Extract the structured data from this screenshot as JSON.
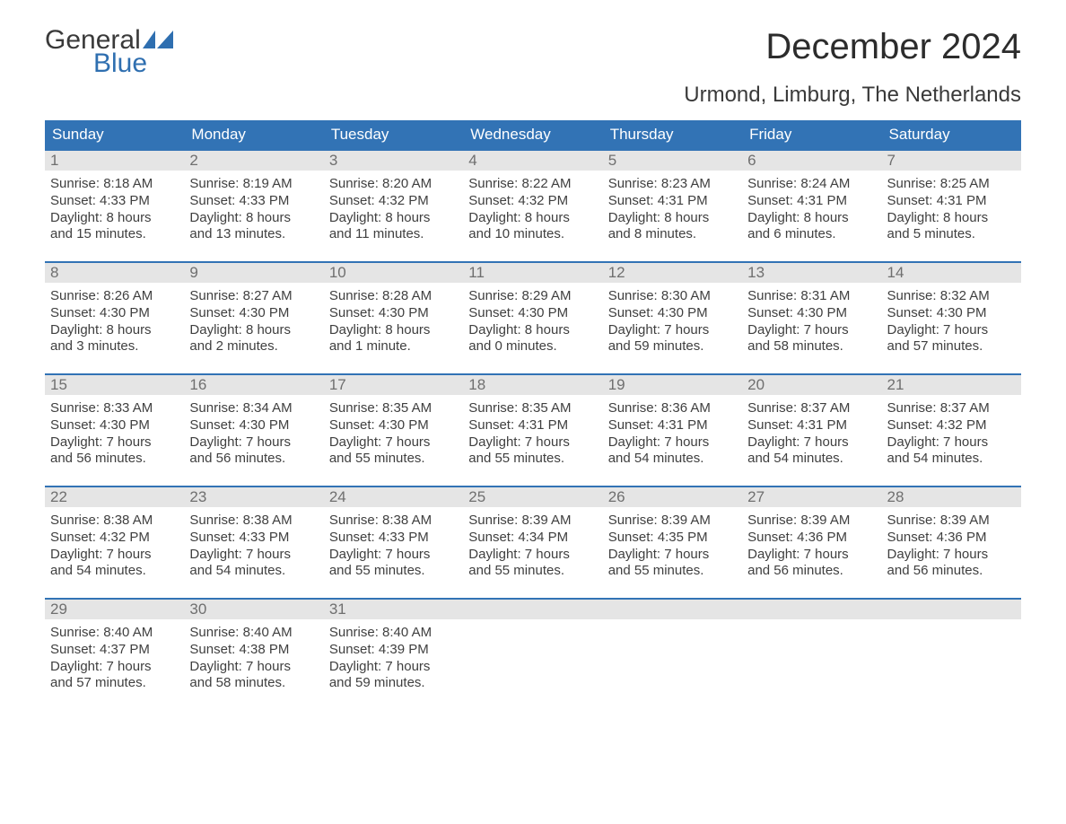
{
  "logo": {
    "general": "General",
    "blue": "Blue"
  },
  "title": "December 2024",
  "location": "Urmond, Limburg, The Netherlands",
  "colors": {
    "header_bg": "#3273b5",
    "header_text": "#ffffff",
    "week_border": "#3273b5",
    "daynum_bg": "#e5e5e5",
    "daynum_text": "#6f6f6f",
    "body_text": "#3f3f3f",
    "logo_blue": "#2f6fb0",
    "background": "#ffffff"
  },
  "dow": [
    "Sunday",
    "Monday",
    "Tuesday",
    "Wednesday",
    "Thursday",
    "Friday",
    "Saturday"
  ],
  "weeks": [
    [
      {
        "n": "1",
        "sr": "8:18 AM",
        "ss": "4:33 PM",
        "dl1": "Daylight: 8 hours",
        "dl2": "and 15 minutes."
      },
      {
        "n": "2",
        "sr": "8:19 AM",
        "ss": "4:33 PM",
        "dl1": "Daylight: 8 hours",
        "dl2": "and 13 minutes."
      },
      {
        "n": "3",
        "sr": "8:20 AM",
        "ss": "4:32 PM",
        "dl1": "Daylight: 8 hours",
        "dl2": "and 11 minutes."
      },
      {
        "n": "4",
        "sr": "8:22 AM",
        "ss": "4:32 PM",
        "dl1": "Daylight: 8 hours",
        "dl2": "and 10 minutes."
      },
      {
        "n": "5",
        "sr": "8:23 AM",
        "ss": "4:31 PM",
        "dl1": "Daylight: 8 hours",
        "dl2": "and 8 minutes."
      },
      {
        "n": "6",
        "sr": "8:24 AM",
        "ss": "4:31 PM",
        "dl1": "Daylight: 8 hours",
        "dl2": "and 6 minutes."
      },
      {
        "n": "7",
        "sr": "8:25 AM",
        "ss": "4:31 PM",
        "dl1": "Daylight: 8 hours",
        "dl2": "and 5 minutes."
      }
    ],
    [
      {
        "n": "8",
        "sr": "8:26 AM",
        "ss": "4:30 PM",
        "dl1": "Daylight: 8 hours",
        "dl2": "and 3 minutes."
      },
      {
        "n": "9",
        "sr": "8:27 AM",
        "ss": "4:30 PM",
        "dl1": "Daylight: 8 hours",
        "dl2": "and 2 minutes."
      },
      {
        "n": "10",
        "sr": "8:28 AM",
        "ss": "4:30 PM",
        "dl1": "Daylight: 8 hours",
        "dl2": "and 1 minute."
      },
      {
        "n": "11",
        "sr": "8:29 AM",
        "ss": "4:30 PM",
        "dl1": "Daylight: 8 hours",
        "dl2": "and 0 minutes."
      },
      {
        "n": "12",
        "sr": "8:30 AM",
        "ss": "4:30 PM",
        "dl1": "Daylight: 7 hours",
        "dl2": "and 59 minutes."
      },
      {
        "n": "13",
        "sr": "8:31 AM",
        "ss": "4:30 PM",
        "dl1": "Daylight: 7 hours",
        "dl2": "and 58 minutes."
      },
      {
        "n": "14",
        "sr": "8:32 AM",
        "ss": "4:30 PM",
        "dl1": "Daylight: 7 hours",
        "dl2": "and 57 minutes."
      }
    ],
    [
      {
        "n": "15",
        "sr": "8:33 AM",
        "ss": "4:30 PM",
        "dl1": "Daylight: 7 hours",
        "dl2": "and 56 minutes."
      },
      {
        "n": "16",
        "sr": "8:34 AM",
        "ss": "4:30 PM",
        "dl1": "Daylight: 7 hours",
        "dl2": "and 56 minutes."
      },
      {
        "n": "17",
        "sr": "8:35 AM",
        "ss": "4:30 PM",
        "dl1": "Daylight: 7 hours",
        "dl2": "and 55 minutes."
      },
      {
        "n": "18",
        "sr": "8:35 AM",
        "ss": "4:31 PM",
        "dl1": "Daylight: 7 hours",
        "dl2": "and 55 minutes."
      },
      {
        "n": "19",
        "sr": "8:36 AM",
        "ss": "4:31 PM",
        "dl1": "Daylight: 7 hours",
        "dl2": "and 54 minutes."
      },
      {
        "n": "20",
        "sr": "8:37 AM",
        "ss": "4:31 PM",
        "dl1": "Daylight: 7 hours",
        "dl2": "and 54 minutes."
      },
      {
        "n": "21",
        "sr": "8:37 AM",
        "ss": "4:32 PM",
        "dl1": "Daylight: 7 hours",
        "dl2": "and 54 minutes."
      }
    ],
    [
      {
        "n": "22",
        "sr": "8:38 AM",
        "ss": "4:32 PM",
        "dl1": "Daylight: 7 hours",
        "dl2": "and 54 minutes."
      },
      {
        "n": "23",
        "sr": "8:38 AM",
        "ss": "4:33 PM",
        "dl1": "Daylight: 7 hours",
        "dl2": "and 54 minutes."
      },
      {
        "n": "24",
        "sr": "8:38 AM",
        "ss": "4:33 PM",
        "dl1": "Daylight: 7 hours",
        "dl2": "and 55 minutes."
      },
      {
        "n": "25",
        "sr": "8:39 AM",
        "ss": "4:34 PM",
        "dl1": "Daylight: 7 hours",
        "dl2": "and 55 minutes."
      },
      {
        "n": "26",
        "sr": "8:39 AM",
        "ss": "4:35 PM",
        "dl1": "Daylight: 7 hours",
        "dl2": "and 55 minutes."
      },
      {
        "n": "27",
        "sr": "8:39 AM",
        "ss": "4:36 PM",
        "dl1": "Daylight: 7 hours",
        "dl2": "and 56 minutes."
      },
      {
        "n": "28",
        "sr": "8:39 AM",
        "ss": "4:36 PM",
        "dl1": "Daylight: 7 hours",
        "dl2": "and 56 minutes."
      }
    ],
    [
      {
        "n": "29",
        "sr": "8:40 AM",
        "ss": "4:37 PM",
        "dl1": "Daylight: 7 hours",
        "dl2": "and 57 minutes."
      },
      {
        "n": "30",
        "sr": "8:40 AM",
        "ss": "4:38 PM",
        "dl1": "Daylight: 7 hours",
        "dl2": "and 58 minutes."
      },
      {
        "n": "31",
        "sr": "8:40 AM",
        "ss": "4:39 PM",
        "dl1": "Daylight: 7 hours",
        "dl2": "and 59 minutes."
      },
      null,
      null,
      null,
      null
    ]
  ],
  "labels": {
    "sunrise": "Sunrise: ",
    "sunset": "Sunset: "
  }
}
